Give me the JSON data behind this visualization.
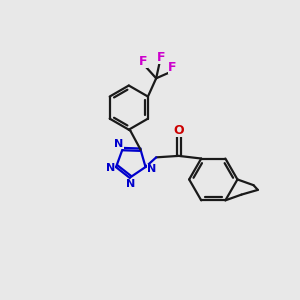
{
  "bg_color": "#e8e8e8",
  "bond_color": "#1a1a1a",
  "tetrazole_color": "#0000cc",
  "oxygen_color": "#cc0000",
  "fluorine_color": "#cc00cc",
  "line_width": 1.6,
  "dbo": 0.055,
  "xlim": [
    0,
    10
  ],
  "ylim": [
    0,
    10
  ]
}
